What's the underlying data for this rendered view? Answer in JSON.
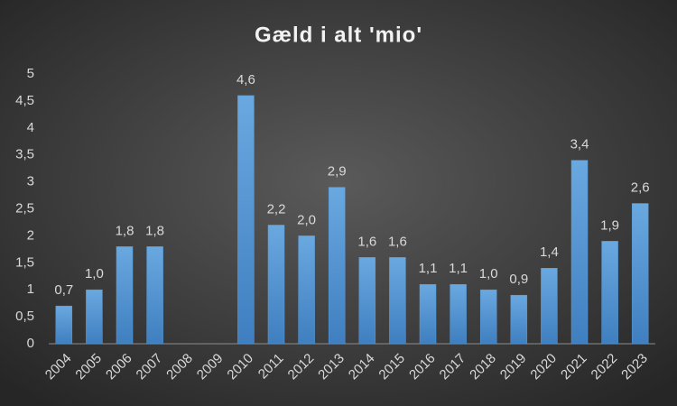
{
  "chart_data": {
    "type": "bar",
    "title": "Gæld i alt 'mio'",
    "categories": [
      "2004",
      "2005",
      "2006",
      "2007",
      "2008",
      "2009",
      "2010",
      "2011",
      "2012",
      "2013",
      "2014",
      "2015",
      "2016",
      "2017",
      "2018",
      "2019",
      "2020",
      "2021",
      "2022",
      "2023"
    ],
    "values": [
      0.7,
      1.0,
      1.8,
      1.8,
      null,
      null,
      4.6,
      2.2,
      2.0,
      2.9,
      1.6,
      1.6,
      1.1,
      1.1,
      1.0,
      0.9,
      1.4,
      3.4,
      1.9,
      2.6
    ],
    "value_labels": [
      "0,7",
      "1,0",
      "1,8",
      "1,8",
      null,
      null,
      "4,6",
      "2,2",
      "2,0",
      "2,9",
      "1,6",
      "1,6",
      "1,1",
      "1,1",
      "1,0",
      "0,9",
      "1,4",
      "3,4",
      "1,9",
      "2,6"
    ],
    "color": "#5b9bd5",
    "ylim": [
      0,
      5
    ],
    "yticks": [
      0,
      {
        "value": 0.5,
        "label": "0,5"
      },
      1,
      {
        "value": 1.5,
        "label": "1,5"
      },
      2,
      {
        "value": 2.5,
        "label": "2,5"
      },
      3,
      {
        "value": 3.5,
        "label": "3,5"
      },
      4,
      {
        "value": 4.5,
        "label": "4,5"
      },
      5
    ],
    "grid": false
  }
}
